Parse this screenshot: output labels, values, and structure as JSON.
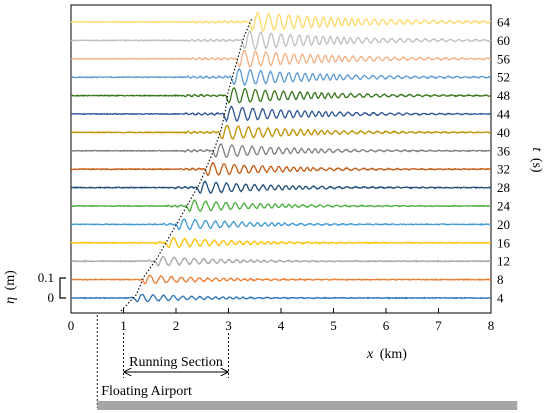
{
  "chart_data": {
    "type": "line",
    "xlabel_var": "x",
    "xlabel_unit": "(km)",
    "ylabel_var": "η",
    "ylabel_unit": "(m)",
    "t_label_var": "t",
    "t_label_unit": "(s)",
    "xlim": [
      0,
      8
    ],
    "x_ticks": [
      0,
      1,
      2,
      3,
      4,
      5,
      6,
      7,
      8
    ],
    "scale_bar": {
      "low_label": "0",
      "high_label": "0.1",
      "value": 0.1
    },
    "series": [
      {
        "name": "4",
        "t": 4,
        "color": "#2e75b6",
        "front_x": 1.3
      },
      {
        "name": "8",
        "t": 8,
        "color": "#ed7d31",
        "front_x": 1.45
      },
      {
        "name": "12",
        "t": 12,
        "color": "#a5a5a5",
        "front_x": 1.7
      },
      {
        "name": "16",
        "t": 16,
        "color": "#ffc000",
        "front_x": 1.9
      },
      {
        "name": "20",
        "t": 20,
        "color": "#3f9bd6",
        "front_x": 2.1
      },
      {
        "name": "24",
        "t": 24,
        "color": "#4caf3f",
        "front_x": 2.3
      },
      {
        "name": "28",
        "t": 28,
        "color": "#1f4e79",
        "front_x": 2.5
      },
      {
        "name": "32",
        "t": 32,
        "color": "#c55a11",
        "front_x": 2.65
      },
      {
        "name": "36",
        "t": 36,
        "color": "#7f7f7f",
        "front_x": 2.8
      },
      {
        "name": "40",
        "t": 40,
        "color": "#bf9000",
        "front_x": 2.92
      },
      {
        "name": "44",
        "t": 44,
        "color": "#2f5597",
        "front_x": 3.0
      },
      {
        "name": "48",
        "t": 48,
        "color": "#38761d",
        "front_x": 3.05
      },
      {
        "name": "52",
        "t": 52,
        "color": "#5b9bd5",
        "front_x": 3.15
      },
      {
        "name": "56",
        "t": 56,
        "color": "#f4b183",
        "front_x": 3.25
      },
      {
        "name": "60",
        "t": 60,
        "color": "#bfbfbf",
        "front_x": 3.35
      },
      {
        "name": "64",
        "t": 64,
        "color": "#ffd966",
        "front_x": 3.5
      }
    ],
    "running_section": {
      "label": "Running Section",
      "x_start": 1,
      "x_end": 3
    },
    "floating_airport": {
      "label": "Floating Airport",
      "x_start": 0.5,
      "x_end": 8.5
    }
  }
}
